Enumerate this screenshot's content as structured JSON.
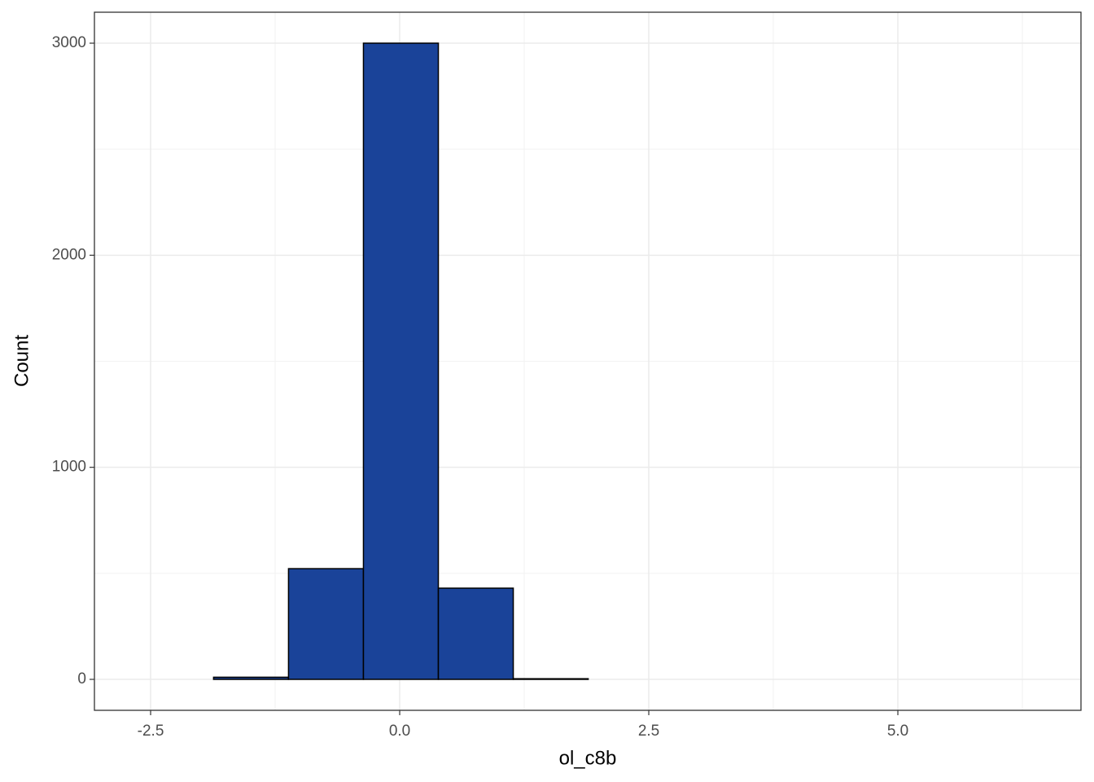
{
  "chart_data": {
    "type": "histogram",
    "x_label": "ol_c8b",
    "y_label": "Count",
    "bins": [
      -2.62,
      -1.868,
      -1.116,
      -0.364,
      0.388,
      1.14,
      1.892,
      2.644,
      3.396,
      4.148,
      4.9,
      5.652,
      6.404
    ],
    "values": [
      0,
      10,
      522,
      3000,
      430,
      3,
      0,
      0,
      0,
      0,
      0,
      0
    ],
    "color": "#1a4399",
    "edge_color": "#000000",
    "xlim": [
      -3.064,
      6.838
    ],
    "ylim": [
      -146,
      3146
    ],
    "xticks": [
      -2.5,
      {
        "value": 0,
        "label": "0.0"
      },
      2.5,
      {
        "value": 5,
        "label": "5.0"
      }
    ],
    "yticks": [
      0,
      1000,
      2000,
      3000
    ],
    "x_minor_ticks": [
      -1.25,
      1.25,
      3.75,
      6.25
    ],
    "y_minor_ticks": [
      500,
      1500,
      2500
    ],
    "grid": true
  }
}
